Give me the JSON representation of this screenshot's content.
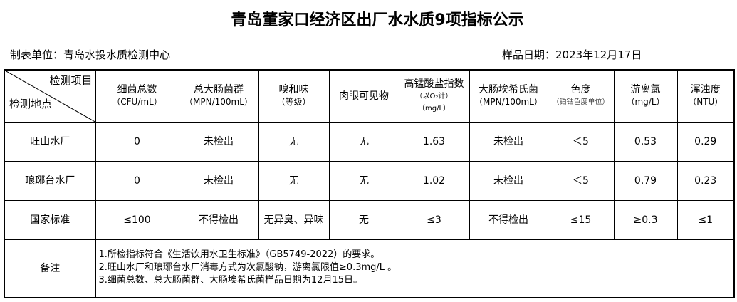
{
  "title": "青岛董家口经济区出厂水水质9项指标公示",
  "unit": "制表单位：青岛水投水质检测中心",
  "date": "样品日期：2023年12月17日",
  "corner": {
    "top": "检测项目",
    "bottom": "检测地点"
  },
  "headers": [
    {
      "name": "细菌总数",
      "unit": "（CFU/mL）"
    },
    {
      "name": "总大肠菌群",
      "unit": "（MPN/100mL）"
    },
    {
      "name": "嗅和味",
      "unit": "（等级）"
    },
    {
      "name": "肉眼可见物",
      "unit": ""
    },
    {
      "name": "高锰酸盐指数",
      "unit": "（以O₂计）",
      "unit2": "（mg/L）"
    },
    {
      "name": "大肠埃希氏菌",
      "unit": "（MPN/100mL）"
    },
    {
      "name": "色度",
      "unit": "（铂钴色度单位）"
    },
    {
      "name": "游离氯",
      "unit": "（mg/L）"
    },
    {
      "name": "浑浊度",
      "unit": "（NTU）"
    }
  ],
  "rows": [
    {
      "site": "旺山水厂",
      "values": [
        "0",
        "未检出",
        "无",
        "无",
        "1.63",
        "未检出",
        "＜5",
        "0.53",
        "0.29"
      ]
    },
    {
      "site": "琅琊台水厂",
      "values": [
        "0",
        "未检出",
        "无",
        "无",
        "1.02",
        "未检出",
        "＜5",
        "0.79",
        "0.23"
      ]
    },
    {
      "site": "国家标准",
      "values": [
        "≤100",
        "不得检出",
        "无异臭、异味",
        "无",
        "≤3",
        "不得检出",
        "≤15",
        "≥0.3",
        "≤1"
      ]
    }
  ],
  "notes": {
    "label": "备注",
    "lines": [
      "1.所检指标符合《生活饮用水卫生标准》（GB5749-2022）的要求。",
      "2.旺山水厂和琅琊台水厂消毒方式为次氯酸钠，游离氯限值≥0.3mg/L 。",
      "3.细菌总数、总大肠菌群、大肠埃希氏菌样品日期为12月15日。"
    ]
  }
}
